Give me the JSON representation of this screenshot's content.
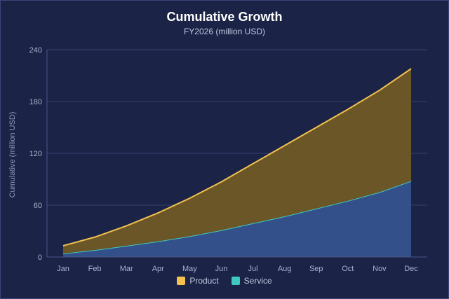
{
  "chart_data": {
    "type": "area",
    "stacked": true,
    "title": "Cumulative Growth",
    "subtitle": "FY2026 (million USD)",
    "ylabel": "Cumulative (million USD)",
    "xlabel": "",
    "categories": [
      "Jan",
      "Feb",
      "Mar",
      "Apr",
      "May",
      "Jun",
      "Jul",
      "Aug",
      "Sep",
      "Oct",
      "Nov",
      "Dec"
    ],
    "ylim": [
      0,
      240
    ],
    "yticks": [
      0,
      60,
      120,
      180,
      240
    ],
    "grid": true,
    "legend_position": "bottom",
    "series": [
      {
        "name": "Service",
        "color": "#3ec8c0",
        "fill": "#34508a",
        "values": [
          4,
          8,
          13,
          18,
          24,
          31,
          39,
          47,
          56,
          65,
          75,
          88
        ]
      },
      {
        "name": "Product",
        "color": "#f2c14e",
        "fill": "#6b5628",
        "values": [
          9,
          15,
          23,
          33,
          44,
          56,
          69,
          82,
          94,
          106,
          118,
          130
        ]
      }
    ],
    "legend": [
      {
        "name": "Product",
        "color": "#f2c14e"
      },
      {
        "name": "Service",
        "color": "#3ec8c0"
      }
    ]
  }
}
